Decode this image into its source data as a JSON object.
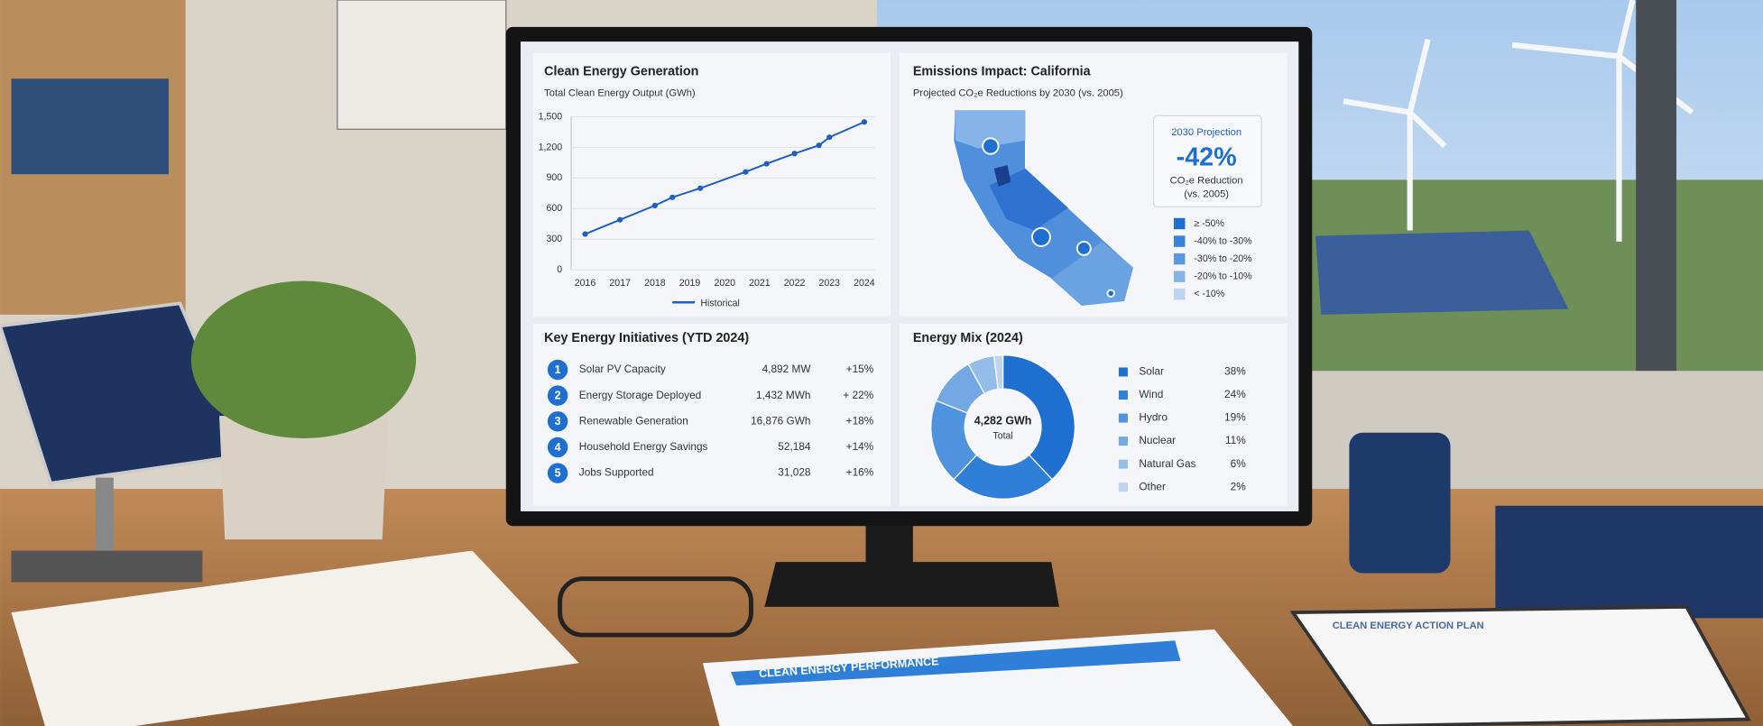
{
  "chart_data": [
    {
      "type": "line",
      "title": "Clean Energy Generation",
      "subtitle": "Total Clean Energy Output (GWh)",
      "x": [
        2016,
        2017,
        2018,
        2018.5,
        2019.3,
        2020.6,
        2021.2,
        2022,
        2022.7,
        2023,
        2024
      ],
      "series": [
        {
          "name": "Historical",
          "color": "#1f5fbf",
          "values": [
            350,
            490,
            630,
            710,
            800,
            960,
            1040,
            1140,
            1220,
            1300,
            1450
          ]
        }
      ],
      "xlim": [
        2015.6,
        2024.3
      ],
      "xticks": [
        2016,
        2017,
        2018,
        2019,
        2020,
        2021,
        2022,
        2023,
        2024
      ],
      "ylim": [
        0,
        1500
      ],
      "yticks": [
        0,
        300,
        600,
        900,
        {
          "value": 1200,
          "label": "1,200"
        },
        {
          "value": 1500,
          "label": "1,500"
        }
      ],
      "grid": true,
      "legend": "bottom"
    },
    {
      "type": "donut",
      "title": "Energy Mix (2024)",
      "categories": [
        "Solar",
        "Wind",
        "Hydro",
        "Nuclear",
        "Natural Gas",
        "Other"
      ],
      "values": [
        38,
        24,
        19,
        11,
        6,
        2
      ],
      "value_labels": [
        "38%",
        "24%",
        "19%",
        "11%",
        "6%",
        "2%"
      ],
      "colors": [
        "#1f6fd1",
        "#2f7fd8",
        "#4f93de",
        "#73a8e4",
        "#94bdea",
        "#bcd4f1"
      ],
      "center_value": "4,282 GWh",
      "center_label": "Total",
      "legend": "right"
    }
  ],
  "emissions": {
    "title": "Emissions Impact: California",
    "subtitle": "Projected CO₂e Reductions by 2030 (vs. 2005)",
    "projection": {
      "label": "2030 Projection",
      "value": "-42%",
      "caption": "CO₂e Reduction",
      "note": "(vs. 2005)"
    },
    "legend": [
      {
        "label": "≥ -50%",
        "color": "#1f6fd1"
      },
      {
        "label": "-40% to -30%",
        "color": "#3a82d9"
      },
      {
        "label": "-30% to -20%",
        "color": "#5b98e0"
      },
      {
        "label": "-20% to -10%",
        "color": "#86b3e8"
      },
      {
        "label": "< -10%",
        "color": "#bcd4f1"
      }
    ]
  },
  "initiatives": {
    "title": "Key Energy Initiatives (YTD 2024)",
    "rows": [
      [
        "1",
        "Solar PV Capacity",
        "4,892 MW",
        "+15%"
      ],
      [
        "2",
        "Energy Storage Deployed",
        "1,432 MWh",
        "+ 22%"
      ],
      [
        "3",
        "Renewable Generation",
        "16,876 GWh",
        "+18%"
      ],
      [
        "4",
        "Household Energy Savings",
        "52,184",
        "+14%"
      ],
      [
        "5",
        "Jobs Supported",
        "31,028",
        "+16%"
      ]
    ]
  },
  "desk": {
    "report_title": "CLEAN ENERGY PERFORMANCE",
    "plan_title": "CLEAN ENERGY ACTION PLAN"
  }
}
